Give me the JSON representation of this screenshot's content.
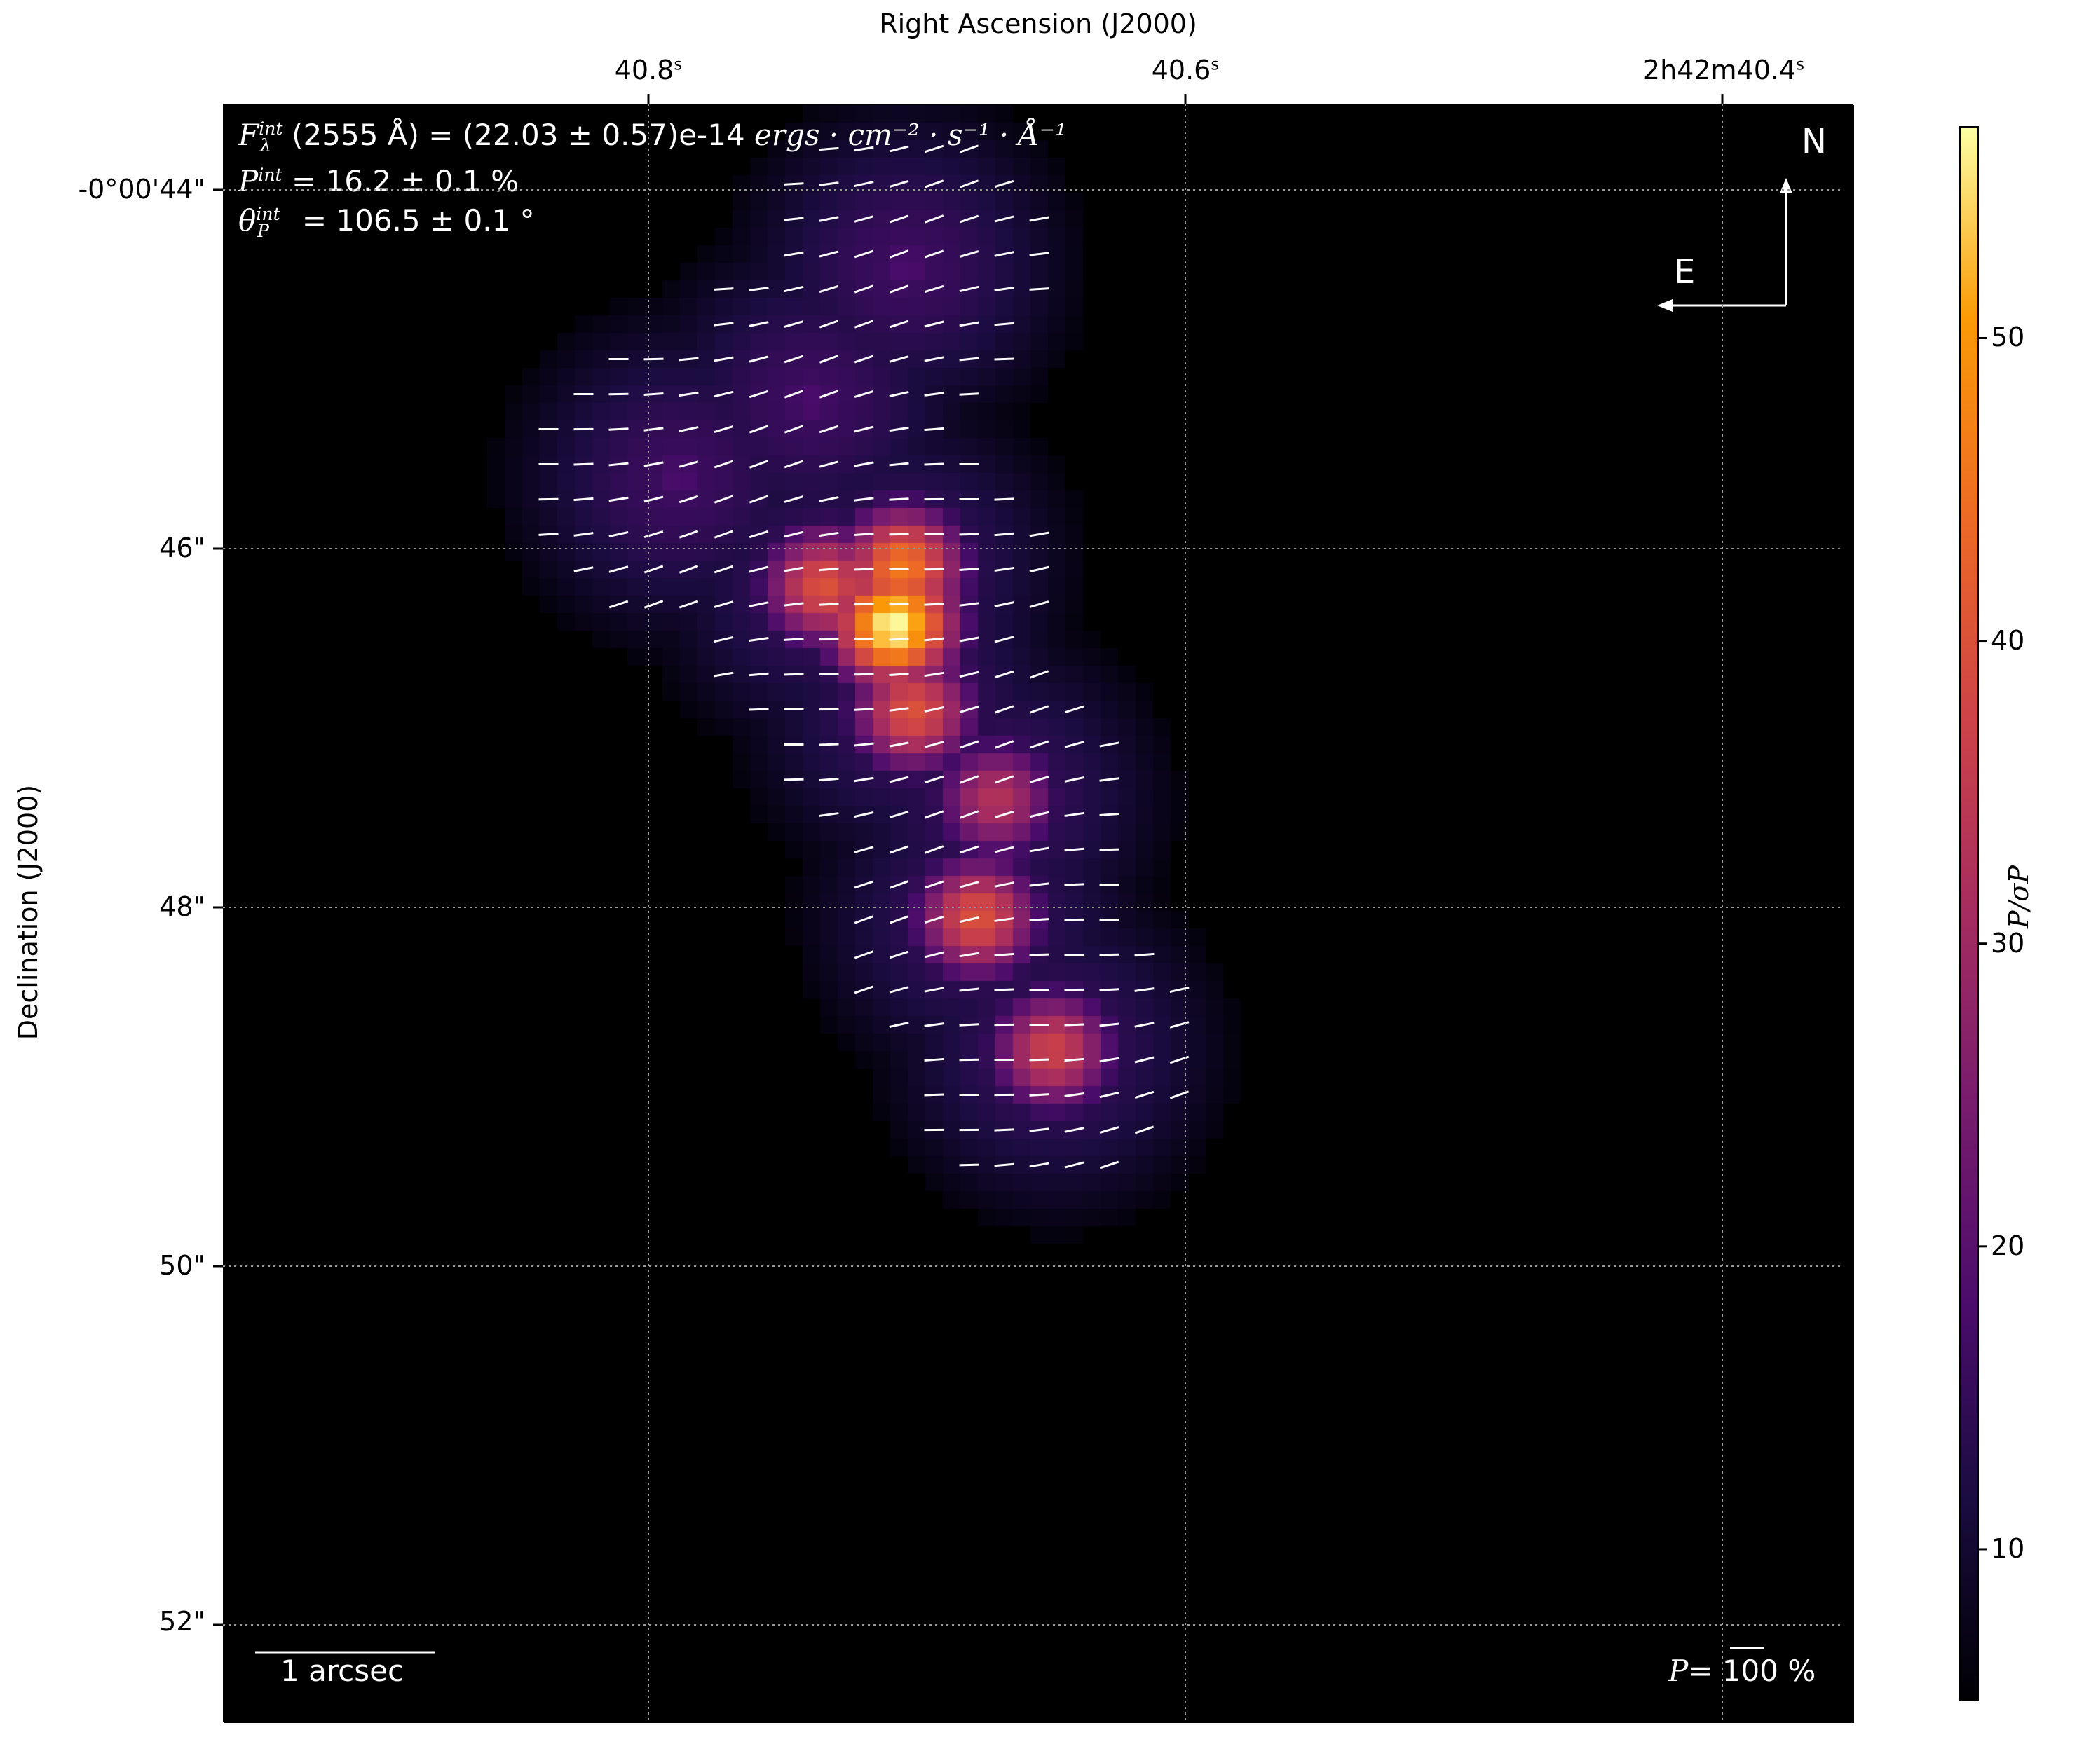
{
  "chart_data": {
    "type": "heatmap",
    "xlabel": "Right Ascension (J2000)",
    "ylabel": "Declination (J2000)",
    "x_ticks": [
      {
        "value": 40.8,
        "label": "40.8",
        "unit": "s"
      },
      {
        "value": 40.6,
        "label": "40.6",
        "unit": "s"
      },
      {
        "value": 40.4,
        "label": "2h42m40.4",
        "unit": "s"
      }
    ],
    "y_ticks": [
      {
        "value": 44,
        "label": "-0°00'44\""
      },
      {
        "value": 46,
        "label": "46\""
      },
      {
        "value": 48,
        "label": "48\""
      },
      {
        "value": 50,
        "label": "50\""
      },
      {
        "value": 52,
        "label": "52\""
      }
    ],
    "grid": true,
    "colormap": "inferno",
    "colorbar": {
      "label": "P/σP",
      "range": [
        5,
        57
      ],
      "ticks": [
        10,
        20,
        30,
        40,
        50
      ]
    },
    "peaks": [
      {
        "ra": 40.709,
        "dec": 46.42,
        "value": 57
      },
      {
        "ra": 40.706,
        "dec": 46.1,
        "value": 46
      },
      {
        "ra": 40.735,
        "dec": 46.2,
        "value": 40
      },
      {
        "ra": 40.702,
        "dec": 46.9,
        "value": 40
      },
      {
        "ra": 40.671,
        "dec": 47.39,
        "value": 33
      },
      {
        "ra": 40.678,
        "dec": 48.05,
        "value": 40
      },
      {
        "ra": 40.65,
        "dec": 48.79,
        "value": 37
      },
      {
        "ra": 40.705,
        "dec": 44.42,
        "value": 18
      },
      {
        "ra": 40.789,
        "dec": 45.6,
        "value": 18
      },
      {
        "ra": 40.74,
        "dec": 45.16,
        "value": 18
      }
    ],
    "annotations": {
      "flux_label": "F",
      "flux_sup": "int",
      "flux_sub": "λ",
      "flux_value": "(2555 Å) = (22.03 ± 0.57)e-14 ",
      "flux_unit": "ergs · cm⁻² · s⁻¹ · Å⁻¹",
      "p_label": "P",
      "p_sup": "int",
      "p_value": " = 16.2 ± 0.1 %",
      "theta_label": "θ",
      "theta_sup": "int",
      "theta_sub": "P",
      "theta_value": " = 106.5 ± 0.1 °",
      "north": "N",
      "east": "E",
      "scale_bar": "1 arcsec",
      "vector_scale_label": "P=",
      "vector_scale_value": " 100 %"
    }
  }
}
